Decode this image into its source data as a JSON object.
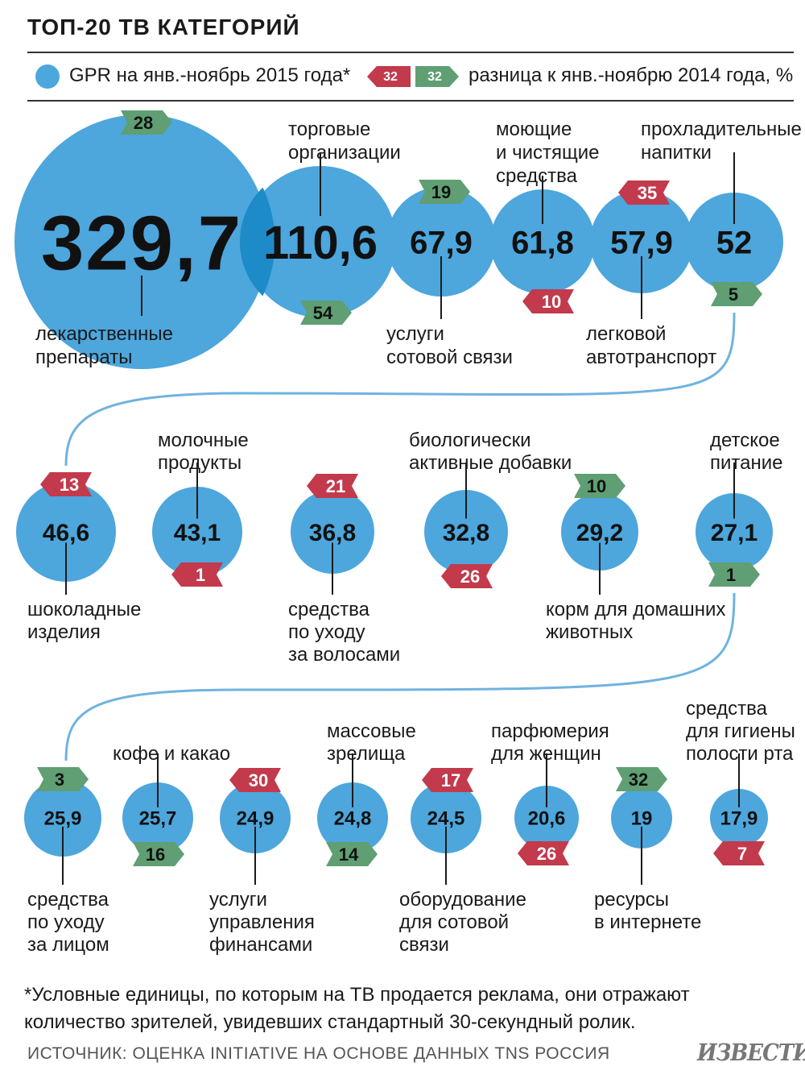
{
  "title": "ТОП-20 ТВ КАТЕГОРИЙ",
  "legend": {
    "circle_label": "GPR на янв.-ноябрь 2015 года*",
    "badge_red": "32",
    "badge_green": "32",
    "diff_label": "разница к янв.-ноябрю 2014 года, %"
  },
  "colors": {
    "circle": "#4da6dc",
    "overlap": "#1e8bc9",
    "up": "#5f9f73",
    "down": "#c23a4c",
    "line": "#6fb3df"
  },
  "chart_data": {
    "type": "bubble",
    "items": [
      {
        "label": "лекарственные\nпрепараты",
        "gpr": "329,7",
        "diff": "28",
        "trend": "up"
      },
      {
        "label": "торговые\nорганизации",
        "gpr": "110,6",
        "diff": "54",
        "trend": "up"
      },
      {
        "label": "услуги\nсотовой связи",
        "gpr": "67,9",
        "diff": "19",
        "trend": "up"
      },
      {
        "label": "моющие\nи чистящие\nсредства",
        "gpr": "61,8",
        "diff": "10",
        "trend": "down"
      },
      {
        "label": "легковой\nавтотранспорт",
        "gpr": "57,9",
        "diff": "35",
        "trend": "down"
      },
      {
        "label": "прохладительные\nнапитки",
        "gpr": "52",
        "diff": "5",
        "trend": "up"
      },
      {
        "label": "шоколадные\nизделия",
        "gpr": "46,6",
        "diff": "13",
        "trend": "down"
      },
      {
        "label": "молочные\nпродукты",
        "gpr": "43,1",
        "diff": "1",
        "trend": "down"
      },
      {
        "label": "средства\nпо уходу\nза волосами",
        "gpr": "36,8",
        "diff": "21",
        "trend": "down"
      },
      {
        "label": "биологически\nактивные добавки",
        "gpr": "32,8",
        "diff": "26",
        "trend": "down"
      },
      {
        "label": "корм для домашних\nживотных",
        "gpr": "29,2",
        "diff": "10",
        "trend": "up"
      },
      {
        "label": "детское\nпитание",
        "gpr": "27,1",
        "diff": "1",
        "trend": "up"
      },
      {
        "label": "средства\nпо уходу\nза лицом",
        "gpr": "25,9",
        "diff": "3",
        "trend": "up"
      },
      {
        "label": "кофе и какао",
        "gpr": "25,7",
        "diff": "16",
        "trend": "up"
      },
      {
        "label": "услуги\nуправления\nфинансами",
        "gpr": "24,9",
        "diff": "30",
        "trend": "down"
      },
      {
        "label": "массовые\nзрелища",
        "gpr": "24,8",
        "diff": "14",
        "trend": "up"
      },
      {
        "label": "оборудование\nдля сотовой\nсвязи",
        "gpr": "24,5",
        "diff": "17",
        "trend": "down"
      },
      {
        "label": "парфюмерия\nдля женщин",
        "gpr": "20,6",
        "diff": "26",
        "trend": "down"
      },
      {
        "label": "ресурсы\nв интернете",
        "gpr": "19",
        "diff": "32",
        "trend": "up"
      },
      {
        "label": "средства\nдля гигиены\nполости рта",
        "gpr": "17,9",
        "diff": "7",
        "trend": "down"
      }
    ]
  },
  "footnote": "*Условные единицы, по которым на ТВ продается реклама, они отражают количество зрителей, увидевших стандартный 30-секундный ролик.",
  "source": "ИСТОЧНИК: ОЦЕНКА INITIATIVE НА ОСНОВЕ ДАННЫХ TNS РОССИЯ",
  "logo": "ИЗВЕСТИЯ"
}
